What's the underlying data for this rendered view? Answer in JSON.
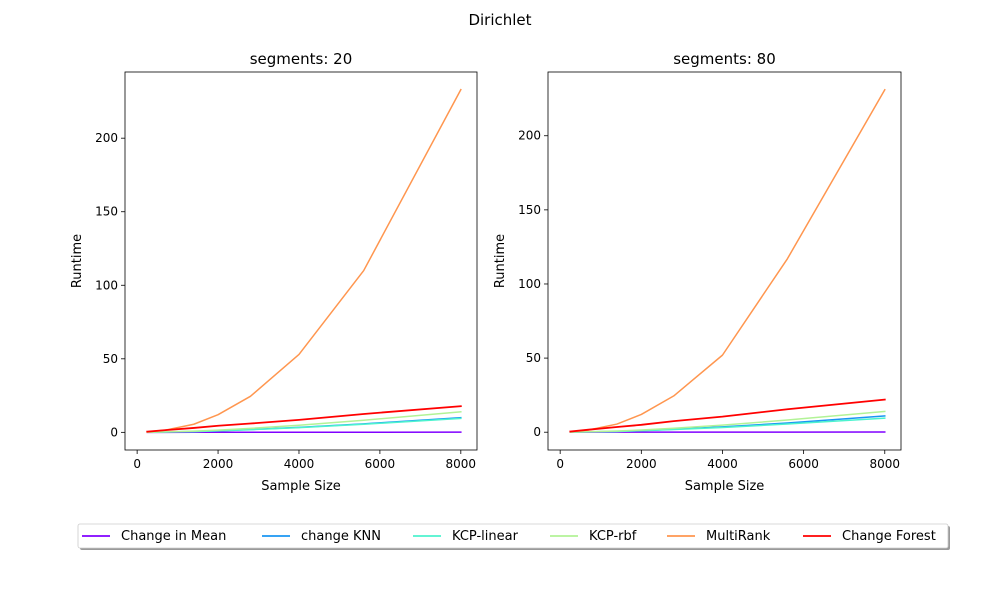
{
  "figure": {
    "title": "Dirichlet"
  },
  "chart_data": [
    {
      "type": "line",
      "title": "segments: 20",
      "xlabel": "Sample Size",
      "ylabel": "Runtime",
      "xlim": [
        -300,
        8400
      ],
      "ylim": [
        -12,
        245
      ],
      "xticks": [
        0,
        2000,
        4000,
        6000,
        8000
      ],
      "yticks": [
        0,
        50,
        100,
        150,
        200
      ],
      "x": [
        250,
        700,
        1400,
        2000,
        2800,
        4000,
        5600,
        8000
      ],
      "series": [
        {
          "name": "Change in Mean",
          "values": [
            0.01,
            0.02,
            0.03,
            0.04,
            0.05,
            0.07,
            0.09,
            0.12
          ]
        },
        {
          "name": "change KNN",
          "values": [
            0.05,
            0.2,
            0.6,
            1.1,
            1.9,
            3.4,
            5.8,
            10.0
          ]
        },
        {
          "name": "KCP-linear",
          "values": [
            0.05,
            0.2,
            0.5,
            1.0,
            1.8,
            3.2,
            5.5,
            9.5
          ]
        },
        {
          "name": "KCP-rbf",
          "values": [
            0.1,
            0.3,
            0.8,
            1.5,
            2.7,
            4.8,
            8.2,
            14.0
          ]
        },
        {
          "name": "MultiRank",
          "values": [
            0.3,
            1.5,
            5.5,
            12.0,
            24.5,
            53.0,
            110.0,
            233.0
          ]
        },
        {
          "name": "Change Forest",
          "values": [
            0.5,
            1.5,
            3.0,
            4.5,
            6.0,
            8.5,
            12.5,
            17.8
          ]
        }
      ]
    },
    {
      "type": "line",
      "title": "segments: 80",
      "xlabel": "Sample Size",
      "ylabel": "Runtime",
      "xlim": [
        -300,
        8400
      ],
      "ylim": [
        -12,
        243
      ],
      "xticks": [
        0,
        2000,
        4000,
        6000,
        8000
      ],
      "yticks": [
        0,
        50,
        100,
        150,
        200
      ],
      "x": [
        250,
        700,
        1400,
        2000,
        2800,
        4000,
        5600,
        8000
      ],
      "series": [
        {
          "name": "Change in Mean",
          "values": [
            0.01,
            0.02,
            0.03,
            0.04,
            0.05,
            0.07,
            0.09,
            0.12
          ]
        },
        {
          "name": "change KNN",
          "values": [
            0.05,
            0.2,
            0.6,
            1.1,
            2.0,
            3.6,
            6.2,
            11.0
          ]
        },
        {
          "name": "KCP-linear",
          "values": [
            0.05,
            0.2,
            0.5,
            1.0,
            1.8,
            3.2,
            5.5,
            9.5
          ]
        },
        {
          "name": "KCP-rbf",
          "values": [
            0.1,
            0.3,
            0.8,
            1.5,
            2.7,
            4.8,
            8.2,
            14.0
          ]
        },
        {
          "name": "MultiRank",
          "values": [
            0.3,
            1.5,
            5.5,
            12.0,
            24.5,
            52.0,
            117.0,
            231.0
          ]
        },
        {
          "name": "Change Forest",
          "values": [
            0.5,
            1.7,
            3.5,
            5.0,
            7.5,
            10.5,
            15.5,
            22.0
          ]
        }
      ]
    }
  ],
  "legend": {
    "placement": "bottom-center",
    "entries": [
      {
        "label": "Change in Mean",
        "color": "#8000ff"
      },
      {
        "label": "change KNN",
        "color": "#1996f3"
      },
      {
        "label": "KCP-linear",
        "color": "#4df3ce"
      },
      {
        "label": "KCP-rbf",
        "color": "#b2f396"
      },
      {
        "label": "MultiRank",
        "color": "#ff964f"
      },
      {
        "label": "Change Forest",
        "color": "#ff0000"
      }
    ]
  }
}
